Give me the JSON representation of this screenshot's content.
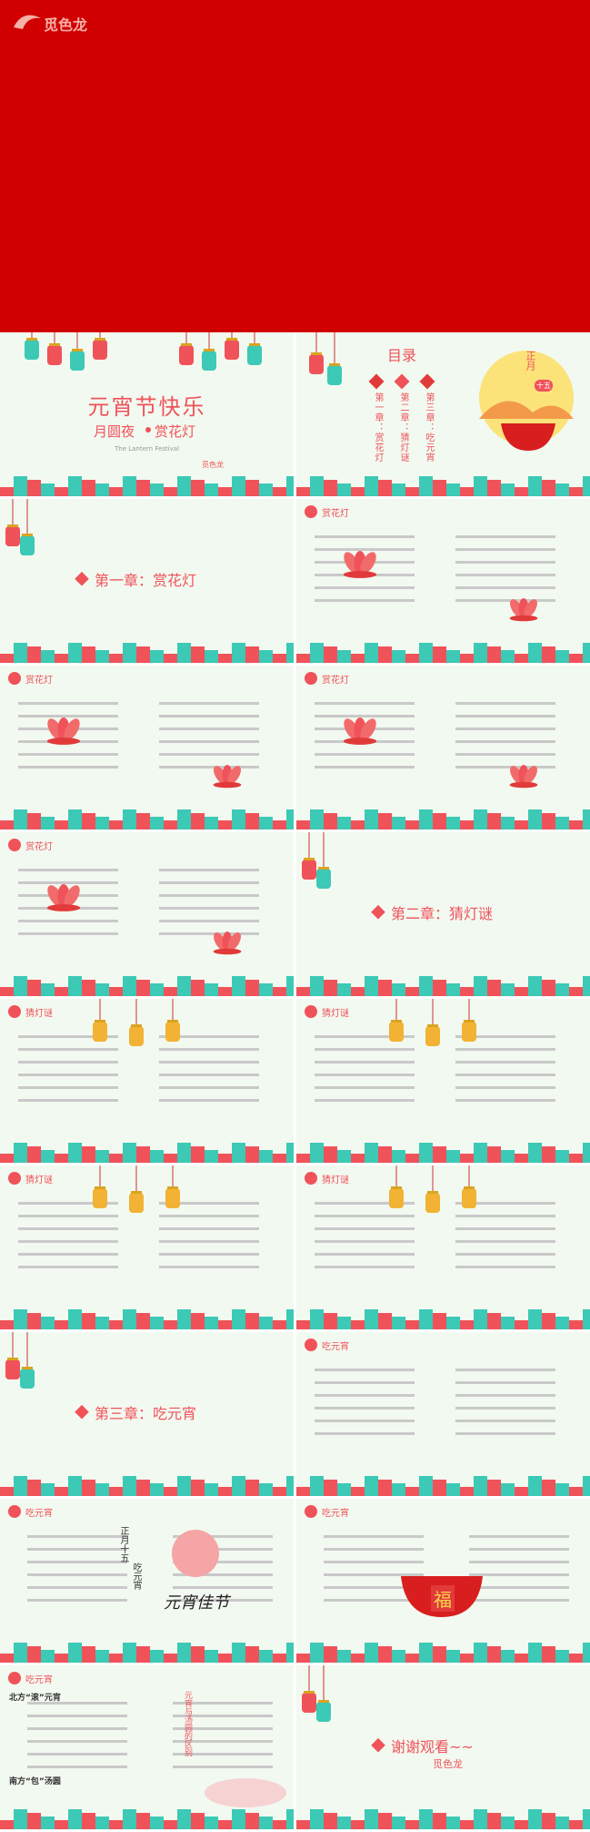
{
  "banner": {
    "logo": "觅色龙"
  },
  "slides": [
    {
      "kind": "cover",
      "title": "元宵节快乐",
      "subtitle": [
        "月圆夜",
        "赏花灯"
      ],
      "english": "The Lantern Festival",
      "logo": "觅色龙"
    },
    {
      "kind": "toc",
      "heading": "目录",
      "items": [
        "第一章：赏花灯",
        "第二章：猜灯谜",
        "第三章：吃元宵"
      ],
      "date": [
        "正月",
        "十五"
      ]
    },
    {
      "kind": "chapter",
      "chapter": "第一章：赏花灯"
    },
    {
      "kind": "content",
      "header": "赏花灯"
    },
    {
      "kind": "content",
      "header": "赏花灯"
    },
    {
      "kind": "content",
      "header": "赏花灯"
    },
    {
      "kind": "content",
      "header": "赏花灯"
    },
    {
      "kind": "chapter",
      "chapter": "第二章：猜灯谜"
    },
    {
      "kind": "content",
      "header": "猜灯谜"
    },
    {
      "kind": "content",
      "header": "猜灯谜"
    },
    {
      "kind": "content",
      "header": "猜灯谜"
    },
    {
      "kind": "content",
      "header": "猜灯谜"
    },
    {
      "kind": "chapter",
      "chapter": "第三章：吃元宵"
    },
    {
      "kind": "content",
      "header": "吃元宵"
    },
    {
      "kind": "content",
      "header": "吃元宵",
      "caption": [
        "正月十五",
        "吃元宵"
      ],
      "art": "元宵佳节"
    },
    {
      "kind": "content",
      "header": "吃元宵",
      "art": "福"
    },
    {
      "kind": "content",
      "header": "吃元宵",
      "notes": [
        "北方“滚”元宵",
        "南方“包”汤圆"
      ],
      "side": "元宵与汤圆的区别"
    },
    {
      "kind": "chapter",
      "chapter": "谢谢观看~~",
      "logo": "觅色龙"
    }
  ]
}
